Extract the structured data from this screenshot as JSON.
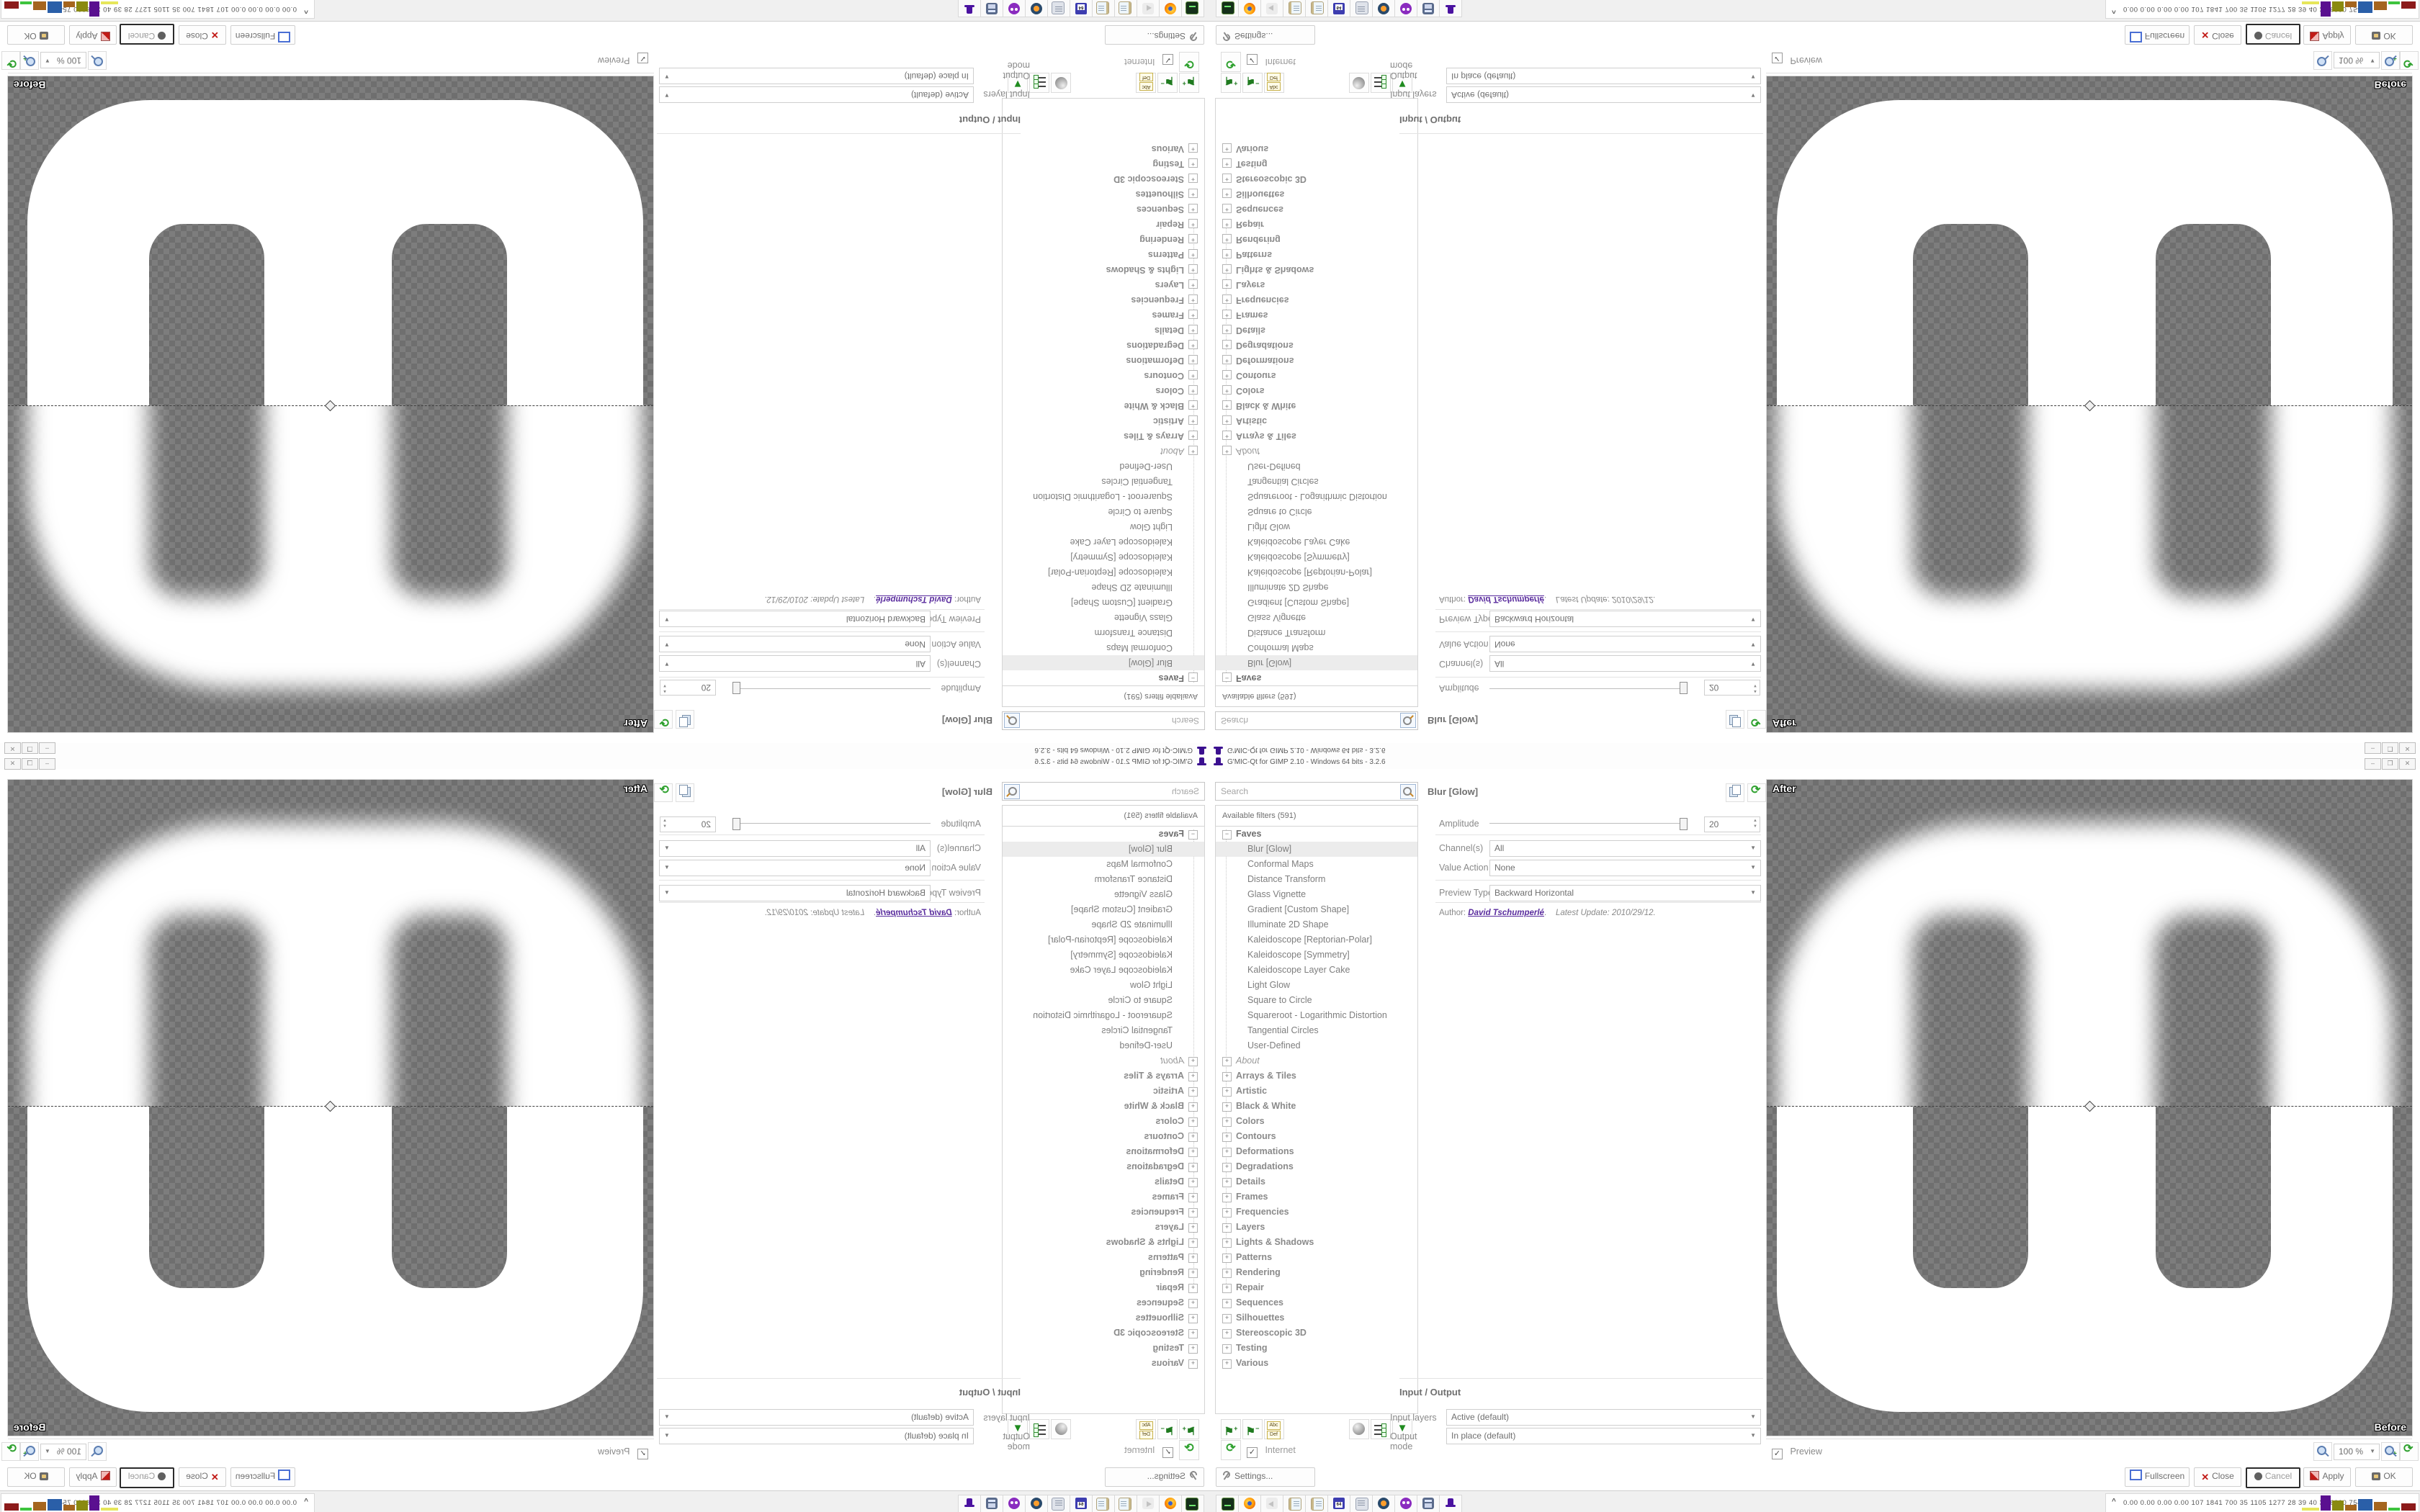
{
  "window": {
    "title": "G'MIC-Qt for GIMP 2.10 - Windows 64 bits - 3.2.6",
    "minimize": "–",
    "restore": "❐",
    "close_glyph": "✕"
  },
  "left_panel": {
    "search_placeholder": "Search",
    "filters_header": "Available filters (591)",
    "internet_label": "Internet",
    "internet_checked": "✓",
    "rename_icon_top": "Abc",
    "rename_icon_bottom": "Def",
    "tree": [
      {
        "label": "Faves",
        "level": 0,
        "style": "faves",
        "expander": "−"
      },
      {
        "label": "Blur [Glow]",
        "level": 1,
        "style": "item",
        "selected": true
      },
      {
        "label": "Conformal Maps",
        "level": 1,
        "style": "item"
      },
      {
        "label": "Distance Transform",
        "level": 1,
        "style": "item"
      },
      {
        "label": "Glass Vignette",
        "level": 1,
        "style": "item"
      },
      {
        "label": "Gradient [Custom Shape]",
        "level": 1,
        "style": "item"
      },
      {
        "label": "Illuminate 2D Shape",
        "level": 1,
        "style": "item"
      },
      {
        "label": "Kaleidoscope [Reptorian-Polar]",
        "level": 1,
        "style": "item"
      },
      {
        "label": "Kaleidoscope [Symmetry]",
        "level": 1,
        "style": "item"
      },
      {
        "label": "Kaleidoscope Layer Cake",
        "level": 1,
        "style": "item"
      },
      {
        "label": "Light Glow",
        "level": 1,
        "style": "item"
      },
      {
        "label": "Square to Circle",
        "level": 1,
        "style": "item"
      },
      {
        "label": "Squareroot - Logarithmic Distortion",
        "level": 1,
        "style": "item"
      },
      {
        "label": "Tangential Circles",
        "level": 1,
        "style": "item"
      },
      {
        "label": "User-Defined",
        "level": 1,
        "style": "item"
      },
      {
        "label": "About",
        "level": 0,
        "style": "italic",
        "expander": "+"
      },
      {
        "label": "Arrays & Tiles",
        "level": 0,
        "style": "bold",
        "expander": "+"
      },
      {
        "label": "Artistic",
        "level": 0,
        "style": "bold",
        "expander": "+"
      },
      {
        "label": "Black & White",
        "level": 0,
        "style": "bold",
        "expander": "+"
      },
      {
        "label": "Colors",
        "level": 0,
        "style": "bold",
        "expander": "+"
      },
      {
        "label": "Contours",
        "level": 0,
        "style": "bold",
        "expander": "+"
      },
      {
        "label": "Deformations",
        "level": 0,
        "style": "bold",
        "expander": "+"
      },
      {
        "label": "Degradations",
        "level": 0,
        "style": "bold",
        "expander": "+"
      },
      {
        "label": "Details",
        "level": 0,
        "style": "bold",
        "expander": "+"
      },
      {
        "label": "Frames",
        "level": 0,
        "style": "bold",
        "expander": "+"
      },
      {
        "label": "Frequencies",
        "level": 0,
        "style": "bold",
        "expander": "+"
      },
      {
        "label": "Layers",
        "level": 0,
        "style": "bold",
        "expander": "+"
      },
      {
        "label": "Lights & Shadows",
        "level": 0,
        "style": "bold",
        "expander": "+"
      },
      {
        "label": "Patterns",
        "level": 0,
        "style": "bold",
        "expander": "+"
      },
      {
        "label": "Rendering",
        "level": 0,
        "style": "bold",
        "expander": "+"
      },
      {
        "label": "Repair",
        "level": 0,
        "style": "bold",
        "expander": "+"
      },
      {
        "label": "Sequences",
        "level": 0,
        "style": "bold",
        "expander": "+"
      },
      {
        "label": "Silhouettes",
        "level": 0,
        "style": "bold",
        "expander": "+"
      },
      {
        "label": "Stereoscopic 3D",
        "level": 0,
        "style": "bold",
        "expander": "+"
      },
      {
        "label": "Testing",
        "level": 0,
        "style": "bold",
        "expander": "+"
      },
      {
        "label": "Various",
        "level": 0,
        "style": "bold",
        "expander": "+"
      }
    ]
  },
  "filter_panel": {
    "title": "Blur [Glow]",
    "params": [
      {
        "label": "Amplitude",
        "type": "slider",
        "value": "20"
      },
      {
        "label": "Channel(s)",
        "type": "select",
        "value": "All"
      },
      {
        "label": "Value Action",
        "type": "select",
        "value": "None"
      },
      {
        "label": "Preview Type",
        "type": "select",
        "value": "Backward Horizontal"
      }
    ],
    "author_label": "Author:",
    "author": "David Tschumperlé",
    "author_sep": ".",
    "update_label": "Latest Update:",
    "update_value": "2010/29/12."
  },
  "io_panel": {
    "header": "Input / Output",
    "input_layers_label": "Input layers",
    "input_layers_value": "Active (default)",
    "output_mode_label": "Output mode",
    "output_mode_value": "In place (default)"
  },
  "preview": {
    "after_label": "After",
    "before_label": "Before",
    "preview_label": "Preview",
    "preview_checked": "✓",
    "zoom_value": "100 %"
  },
  "buttons": {
    "settings": "Settings...",
    "fullscreen": "Fullscreen",
    "close": "Close",
    "cancel": "Cancel",
    "apply": "Apply",
    "ok": "OK"
  },
  "taskbar": {
    "icons": [
      {
        "name": "console-icon",
        "cls": "console"
      },
      {
        "name": "firefox-icon",
        "cls": "firefox"
      },
      {
        "name": "muted-speaker-icon",
        "cls": "muted"
      },
      {
        "name": "notepad-icon",
        "cls": "notepad"
      },
      {
        "name": "notepad-icon-2",
        "cls": "notepad"
      },
      {
        "name": "floppy-64-icon",
        "cls": "floppy",
        "label": "64"
      },
      {
        "name": "script-icon",
        "cls": "script"
      },
      {
        "name": "blender-icon",
        "cls": "blender"
      },
      {
        "name": "purple-mascot-icon",
        "cls": "mascot"
      },
      {
        "name": "calculator-icon",
        "cls": "calc"
      },
      {
        "name": "gmic-wizard-hat-icon",
        "cls": "wizardhat"
      }
    ],
    "tray_chevron": "^",
    "tray_text": "0.00 0.00 0.00 0.00  107 1841 700  35  1105 1277  28  39  40  37  6000 7548",
    "tray_bars": [
      {
        "color": "#e6e65a",
        "w": 24,
        "h": 4
      },
      {
        "color": "#5a1090",
        "w": 14,
        "h": 21
      },
      {
        "color": "#8a8a10",
        "w": 16,
        "h": 14
      },
      {
        "color": "#a5651e",
        "w": 16,
        "h": 8
      },
      {
        "color": "#2a5fa8",
        "w": 20,
        "h": 16
      },
      {
        "color": "#a5651e",
        "w": 18,
        "h": 12
      },
      {
        "color": "#3ec43e",
        "w": 16,
        "h": 4
      },
      {
        "color": "#8c1a1a",
        "w": 20,
        "h": 10
      }
    ]
  }
}
